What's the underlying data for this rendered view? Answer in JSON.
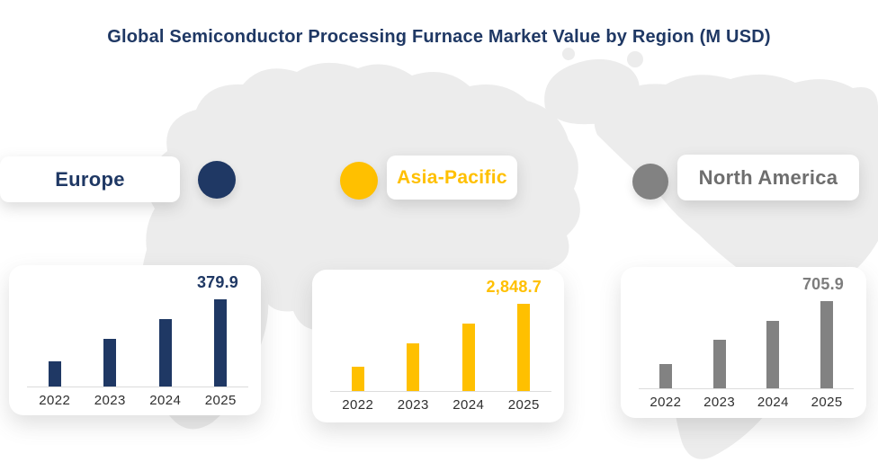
{
  "title": "Global Semiconductor Processing Furnace Market Value by Region (M USD)",
  "colors": {
    "background": "#FFFFFF",
    "title_text": "#1F3864",
    "map_land": "#ECECEC",
    "baseline": "#DCDCDC",
    "year_text": "#2F2F2F",
    "card": "#FFFFFF"
  },
  "legend": [
    {
      "label": "Europe",
      "color": "#1F3864",
      "text_color": "#1F3864"
    },
    {
      "label": "Asia-Pacific",
      "color": "#FFC000",
      "text_color": "#FFC000"
    },
    {
      "label": "North America",
      "color": "#828282",
      "text_color": "#6E6E6E"
    }
  ],
  "chart_data": [
    {
      "type": "bar",
      "region": "Europe",
      "categories": [
        "2022",
        "2023",
        "2024",
        "2025"
      ],
      "values": [
        110,
        208,
        294,
        379.9
      ],
      "displayed_value_label": "379.9",
      "labeled_year": "2025",
      "color": "#1F3864",
      "value_color": "#1F3864",
      "unit": "M USD",
      "ylim": [
        0,
        380
      ],
      "grid": false,
      "note_values_estimated_except_2025": true
    },
    {
      "type": "bar",
      "region": "Asia-Pacific",
      "categories": [
        "2022",
        "2023",
        "2024",
        "2025"
      ],
      "values": [
        790,
        1555,
        2200,
        2848.7
      ],
      "displayed_value_label": "2,848.7",
      "labeled_year": "2025",
      "color": "#FFC000",
      "value_color": "#FFC000",
      "unit": "M USD",
      "ylim": [
        0,
        2850
      ],
      "grid": false,
      "note_values_estimated_except_2025": true
    },
    {
      "type": "bar",
      "region": "North America",
      "categories": [
        "2022",
        "2023",
        "2024",
        "2025"
      ],
      "values": [
        200,
        390,
        545,
        705.9
      ],
      "displayed_value_label": "705.9",
      "labeled_year": "2025",
      "color": "#828282",
      "value_color": "#7D7D7D",
      "unit": "M USD",
      "ylim": [
        0,
        710
      ],
      "grid": false,
      "note_values_estimated_except_2025": true
    }
  ]
}
